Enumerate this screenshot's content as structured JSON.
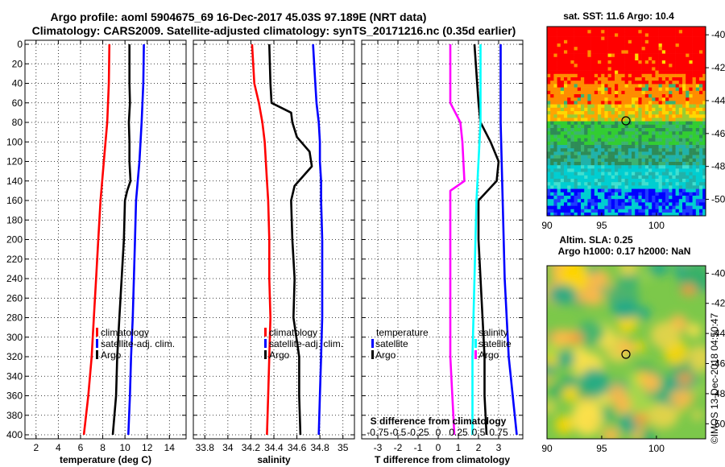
{
  "titles": {
    "line1": "Argo profile: aoml 5904675_69 16-Dec-2017 45.03S 97.189E (NRT data)",
    "line2": "Climatology: CARS2009. Satellite-adjusted climatology: synTS_20171216.nc (0.35d earlier)"
  },
  "depth_ticks": [
    0,
    20,
    40,
    60,
    80,
    100,
    120,
    140,
    160,
    180,
    200,
    220,
    240,
    260,
    280,
    300,
    320,
    340,
    360,
    380,
    400
  ],
  "depth_range": [
    0,
    400
  ],
  "colors": {
    "climatology": "#ff0000",
    "satellite": "#0000ff",
    "argo": "#000000",
    "sat_diff_t": "#ff00ff",
    "sat_diff_s": "#00ffff"
  },
  "chart_data": [
    {
      "type": "line",
      "id": "temperature",
      "xlabel": "temperature (deg C)",
      "xlim": [
        1,
        15.5
      ],
      "xticks": [
        2,
        4,
        6,
        8,
        10,
        12,
        14
      ],
      "xtick_labels": [
        "2",
        "4",
        "6",
        "8",
        "10",
        "12",
        "14"
      ],
      "legend": [
        "climatology",
        "satellite-adj. clim.",
        "Argo"
      ],
      "series": [
        {
          "name": "climatology",
          "color": "red",
          "depth": [
            0,
            40,
            80,
            120,
            160,
            200,
            240,
            280,
            320,
            360,
            400
          ],
          "values": [
            8.6,
            8.55,
            8.4,
            8.1,
            7.8,
            7.6,
            7.4,
            7.2,
            7.0,
            6.7,
            6.3
          ]
        },
        {
          "name": "satellite-adj. clim.",
          "color": "blue",
          "depth": [
            0,
            40,
            80,
            120,
            160,
            200,
            240,
            280,
            320,
            360,
            400
          ],
          "values": [
            11.7,
            11.65,
            11.5,
            11.3,
            11.0,
            10.9,
            10.8,
            10.7,
            10.55,
            10.45,
            10.3
          ]
        },
        {
          "name": "Argo",
          "color": "black",
          "depth": [
            0,
            40,
            60,
            80,
            100,
            120,
            140,
            150,
            160,
            200,
            240,
            280,
            320,
            360,
            400
          ],
          "values": [
            10.4,
            10.4,
            10.45,
            10.35,
            10.4,
            10.4,
            10.5,
            10.2,
            10.0,
            9.9,
            9.7,
            9.5,
            9.3,
            9.2,
            8.9
          ]
        }
      ]
    },
    {
      "type": "line",
      "id": "salinity",
      "xlabel": "salinity",
      "xlim": [
        33.7,
        35.1
      ],
      "xticks": [
        33.8,
        34.0,
        34.2,
        34.4,
        34.6,
        34.8,
        35.0
      ],
      "xtick_labels": [
        "33.8",
        "34",
        "34.2",
        "34.4",
        "34.6",
        "34.8",
        "35"
      ],
      "legend": [
        "climatology",
        "satellite-adj. clim.",
        "Argo"
      ],
      "series": [
        {
          "name": "climatology",
          "color": "red",
          "depth": [
            0,
            40,
            60,
            80,
            100,
            120,
            140,
            160,
            200,
            240,
            280,
            320,
            360,
            400
          ],
          "values": [
            34.21,
            34.23,
            34.27,
            34.3,
            34.32,
            34.33,
            34.34,
            34.35,
            34.36,
            34.36,
            34.37,
            34.36,
            34.35,
            34.34
          ]
        },
        {
          "name": "satellite-adj. clim.",
          "color": "blue",
          "depth": [
            0,
            40,
            60,
            80,
            100,
            120,
            140,
            160,
            200,
            240,
            280,
            320,
            360,
            400
          ],
          "values": [
            34.74,
            34.76,
            34.77,
            34.79,
            34.8,
            34.8,
            34.81,
            34.81,
            34.82,
            34.82,
            34.82,
            34.81,
            34.8,
            34.79
          ]
        },
        {
          "name": "Argo",
          "color": "black",
          "depth": [
            0,
            40,
            60,
            70,
            80,
            95,
            110,
            125,
            145,
            160,
            200,
            240,
            280,
            320,
            360,
            400
          ],
          "values": [
            34.36,
            34.37,
            34.38,
            34.55,
            34.56,
            34.6,
            34.71,
            34.73,
            34.58,
            34.55,
            34.56,
            34.58,
            34.57,
            34.62,
            34.62,
            34.63
          ]
        }
      ]
    },
    {
      "type": "line",
      "id": "differences",
      "xlabel": "T difference from climatology",
      "xlabel2": "S difference from climatology",
      "xlim": [
        -3.8,
        4.2
      ],
      "xticks": [
        -3,
        -2,
        -1,
        0,
        1,
        2,
        3
      ],
      "xtick_labels": [
        "-3",
        "-2",
        "-1",
        "0",
        "1",
        "2",
        "3"
      ],
      "xtick2_labels": [
        "-0.75",
        "-0.5",
        "-0.25",
        "0",
        "0.25",
        "0.5",
        "0.75"
      ],
      "legend_t": [
        "temperature",
        "satellite",
        "Argo"
      ],
      "legend_s": [
        "salinity",
        "satellite",
        "Argo"
      ],
      "series": [
        {
          "name": "T satellite",
          "color": "blue",
          "depth": [
            0,
            80,
            160,
            240,
            320,
            400
          ],
          "values": [
            3.1,
            3.1,
            3.2,
            3.3,
            3.5,
            3.9
          ]
        },
        {
          "name": "T Argo",
          "color": "black",
          "depth": [
            0,
            60,
            80,
            100,
            120,
            140,
            160,
            200,
            280,
            320,
            360,
            400
          ],
          "values": [
            1.8,
            2.0,
            2.1,
            2.6,
            3.0,
            2.9,
            2.0,
            2.0,
            2.2,
            2.3,
            2.3,
            2.4
          ]
        },
        {
          "name": "S satellite",
          "color": "cyan",
          "depth": [
            0,
            80,
            160,
            240,
            320,
            400
          ],
          "values": [
            2.1,
            2.1,
            1.9,
            1.8,
            1.7,
            1.7
          ]
        },
        {
          "name": "S Argo",
          "color": "magenta",
          "depth": [
            0,
            60,
            80,
            100,
            140,
            150,
            200,
            260,
            320,
            360,
            400
          ],
          "values": [
            0.6,
            0.6,
            1.1,
            1.2,
            1.3,
            0.6,
            0.6,
            0.6,
            0.6,
            0.7,
            0.8
          ]
        }
      ]
    },
    {
      "type": "heatmap",
      "id": "sst-map",
      "title": "sat. SST: 11.6 Argo: 10.4",
      "xticks": [
        "90",
        "95",
        "100"
      ],
      "yticks": [
        "-40",
        "-42",
        "-44",
        "-46",
        "-48",
        "-50"
      ],
      "xlim": [
        90,
        104.5
      ],
      "ylim": [
        -51,
        -39.5
      ],
      "marker": {
        "lon": 97.189,
        "lat": -45.03
      }
    },
    {
      "type": "heatmap",
      "id": "sla-map",
      "title": "Altim. SLA: 0.25",
      "subtitle": "Argo h1000: 0.17 h2000: NaN",
      "xticks": [
        "90",
        "95",
        "100"
      ],
      "yticks": [
        "-40",
        "-42",
        "-44",
        "-46",
        "-48",
        "-50"
      ],
      "xlim": [
        90,
        104.5
      ],
      "ylim": [
        -51,
        -39.5
      ],
      "marker": {
        "lon": 97.189,
        "lat": -45.03
      }
    }
  ],
  "credit": "©IMOS 13-Dec-2018 04:50:47"
}
